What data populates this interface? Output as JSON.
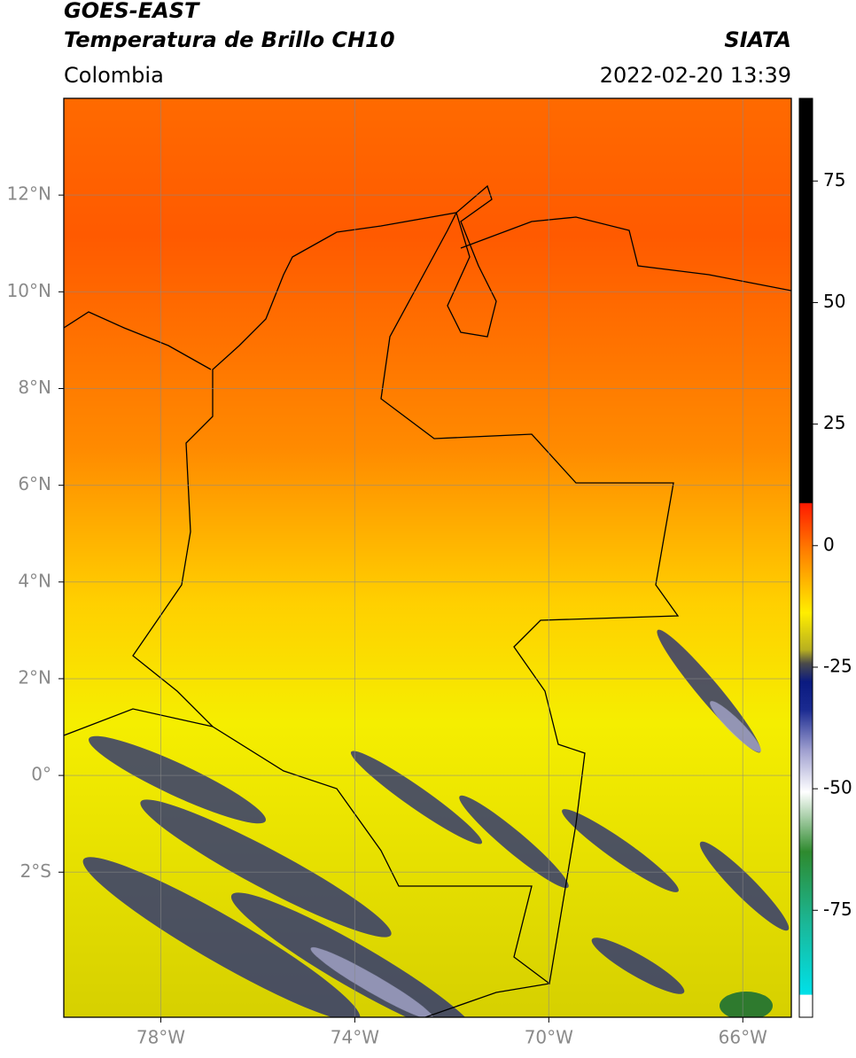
{
  "header": {
    "title": "GOES-EAST",
    "subtitle": "Temperatura de Brillo CH10",
    "region": "Colombia",
    "source": "SIATA",
    "datetime": "2022-02-20 13:39"
  },
  "map": {
    "xlim": [
      -80,
      -65
    ],
    "ylim": [
      -5,
      14
    ],
    "xticks": [
      {
        "value": -78,
        "label": "78°W"
      },
      {
        "value": -74,
        "label": "74°W"
      },
      {
        "value": -70,
        "label": "70°W"
      },
      {
        "value": -66,
        "label": "66°W"
      }
    ],
    "yticks": [
      {
        "value": 12,
        "label": "12°N"
      },
      {
        "value": 10,
        "label": "10°N"
      },
      {
        "value": 8,
        "label": "8°N"
      },
      {
        "value": 6,
        "label": "6°N"
      },
      {
        "value": 4,
        "label": "4°N"
      },
      {
        "value": 2,
        "label": "2°N"
      },
      {
        "value": 0,
        "label": "0°"
      },
      {
        "value": -2,
        "label": "2°S"
      }
    ],
    "grid": true
  },
  "colorbar": {
    "lim": [
      -97,
      92
    ],
    "ticks": [
      75,
      50,
      25,
      0,
      -25,
      -50,
      -75
    ]
  }
}
